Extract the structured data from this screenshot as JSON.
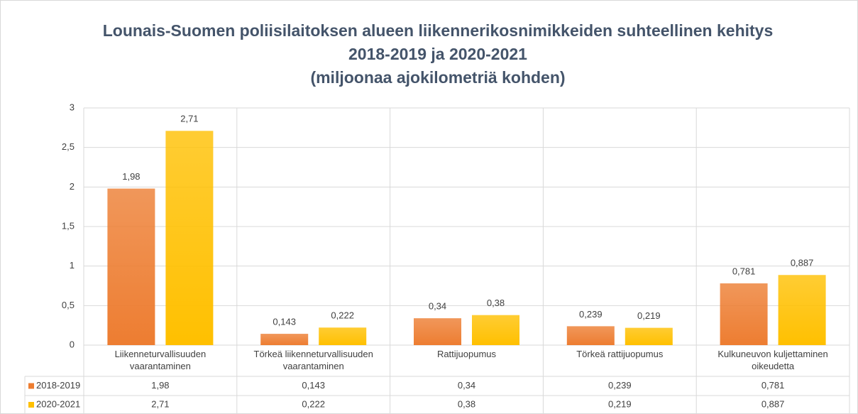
{
  "chart_data": {
    "type": "bar",
    "title": [
      "Lounais-Suomen poliisilaitoksen alueen liikennerikosnimikkeiden suhteellinen kehitys",
      "2018-2019 ja 2020-2021",
      "(miljoonaa ajokilometriä kohden)"
    ],
    "categories": [
      "Liikenneturvallisuuden vaarantaminen",
      "Törkeä liikenneturvallisuuden vaarantaminen",
      "Rattijuopumus",
      "Törkeä rattijuopumus",
      "Kulkuneuvon kuljettaminen oikeudetta"
    ],
    "series": [
      {
        "name": "2018-2019",
        "color": "#ed7d31",
        "values": [
          1.98,
          0.143,
          0.34,
          0.239,
          0.781
        ],
        "value_labels": [
          "1,98",
          "0,143",
          "0,34",
          "0,239",
          "0,781"
        ]
      },
      {
        "name": "2020-2021",
        "color": "#ffc000",
        "values": [
          2.71,
          0.222,
          0.38,
          0.219,
          0.887
        ],
        "value_labels": [
          "2,71",
          "0,222",
          "0,38",
          "0,219",
          "0,887"
        ]
      }
    ],
    "ylim": [
      0,
      3
    ],
    "yticks": [
      0,
      {
        "value": 0.5,
        "label": "0,5"
      },
      1,
      {
        "value": 1.5,
        "label": "1,5"
      },
      2,
      {
        "value": 2.5,
        "label": "2,5"
      },
      3
    ],
    "grid": true,
    "data_table": true
  }
}
